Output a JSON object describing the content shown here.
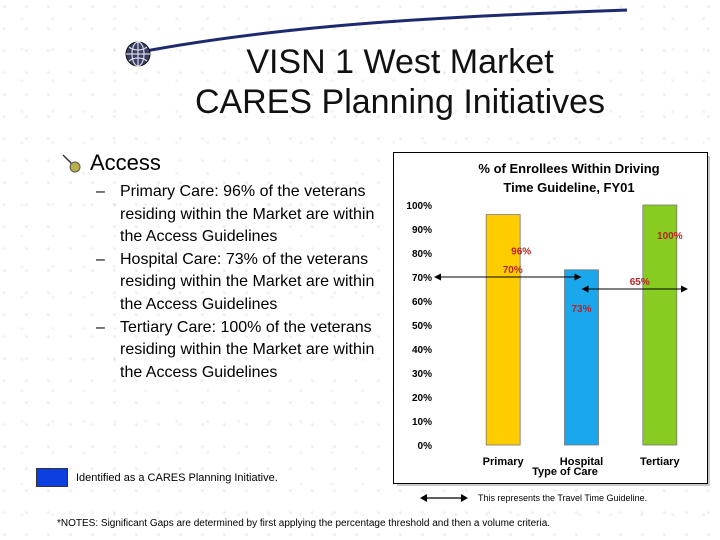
{
  "slide": {
    "title_line1": "VISN 1 West Market",
    "title_line2": "CARES Planning Initiatives"
  },
  "bullets": {
    "main_label": "Access",
    "items": [
      {
        "dash": "–",
        "text": "Primary Care: 96% of the veterans residing within the Market are within the Access Guidelines"
      },
      {
        "dash": "–",
        "text": "Hospital Care: 73% of the veterans residing within the Market are within the Access Guidelines"
      },
      {
        "dash": "–",
        "text": "Tertiary Care: 100% of the veterans residing within the Market are within the Access Guidelines"
      }
    ]
  },
  "legend": {
    "box_color": "#0b3fe0",
    "text": "Identified as a CARES Planning Initiative."
  },
  "travel_note": "This represents the Travel Time Guideline.",
  "footnote": "*NOTES:  Significant Gaps are determined by first applying the percentage threshold and then a volume criteria.",
  "chart_data": {
    "type": "bar",
    "title": "% of Enrollees Within Driving Time Guideline, FY01",
    "categories": [
      "Primary",
      "Hospital",
      "Tertiary"
    ],
    "values": [
      96,
      73,
      100
    ],
    "data_labels": [
      "96%",
      "73%",
      "100%"
    ],
    "colors": [
      "#ffcc00",
      "#1aa7ec",
      "#88cc22"
    ],
    "xlabel": "Type of Care",
    "ylabel": "",
    "ylim": [
      0,
      100
    ],
    "yticks": [
      "0%",
      "10%",
      "20%",
      "30%",
      "40%",
      "50%",
      "60%",
      "70%",
      "80%",
      "90%",
      "100%"
    ],
    "guidelines": [
      {
        "label": "70%",
        "value": 70,
        "from": "Primary",
        "to": "Hospital"
      },
      {
        "label": "65%",
        "value": 65,
        "from": "Hospital",
        "to": "Tertiary"
      }
    ],
    "grid": false
  }
}
